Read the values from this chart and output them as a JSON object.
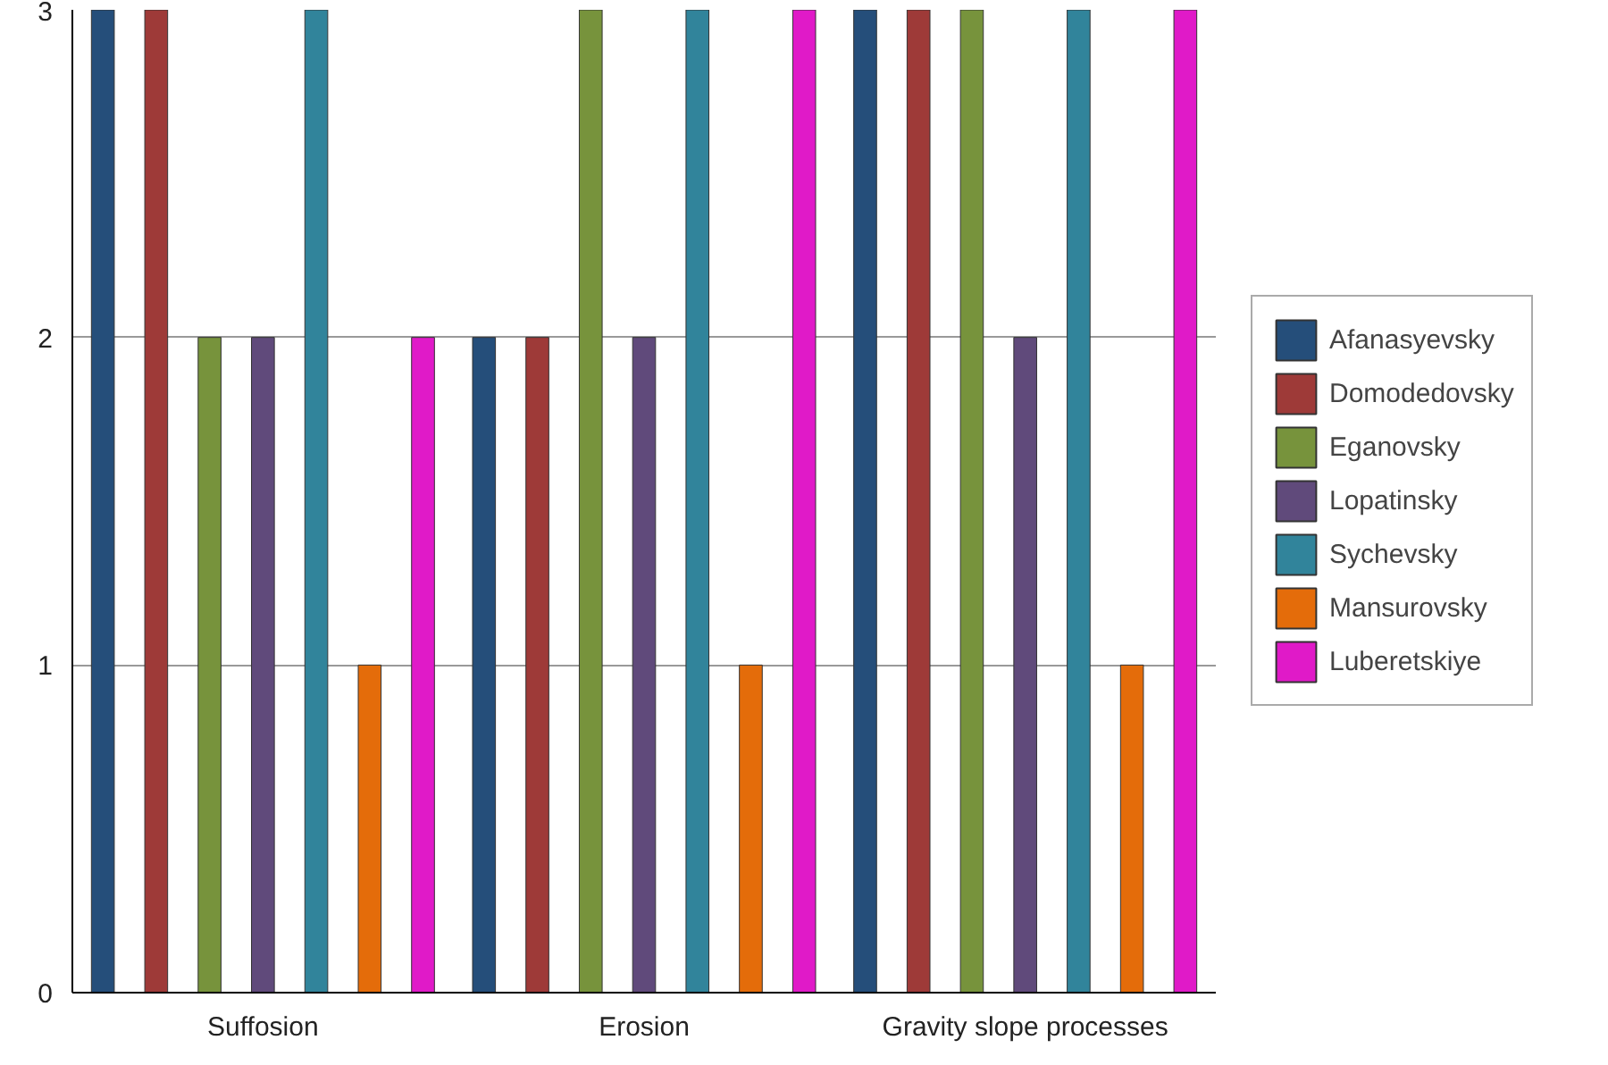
{
  "chart_data": {
    "type": "bar",
    "categories": [
      "Suffosion",
      "Erosion",
      "Gravity slope processes"
    ],
    "series": [
      {
        "name": "Afanasyevsky",
        "color": "#254e7a",
        "values": [
          3,
          2,
          3
        ]
      },
      {
        "name": "Domodedovsky",
        "color": "#9e3a38",
        "values": [
          3,
          2,
          3
        ]
      },
      {
        "name": "Eganovsky",
        "color": "#77933c",
        "values": [
          2,
          3,
          3
        ]
      },
      {
        "name": "Lopatinsky",
        "color": "#604a7b",
        "values": [
          2,
          2,
          2
        ]
      },
      {
        "name": "Sychevsky",
        "color": "#31849b",
        "values": [
          3,
          3,
          3
        ]
      },
      {
        "name": "Mansurovsky",
        "color": "#e46c0a",
        "values": [
          1,
          1,
          1
        ]
      },
      {
        "name": "Luberetskiye",
        "color": "#e01ac8",
        "values": [
          2,
          3,
          3
        ]
      }
    ],
    "ylim": [
      0,
      3
    ],
    "yticks": [
      0,
      1,
      2,
      3
    ],
    "grid": "y",
    "legend": "right"
  }
}
